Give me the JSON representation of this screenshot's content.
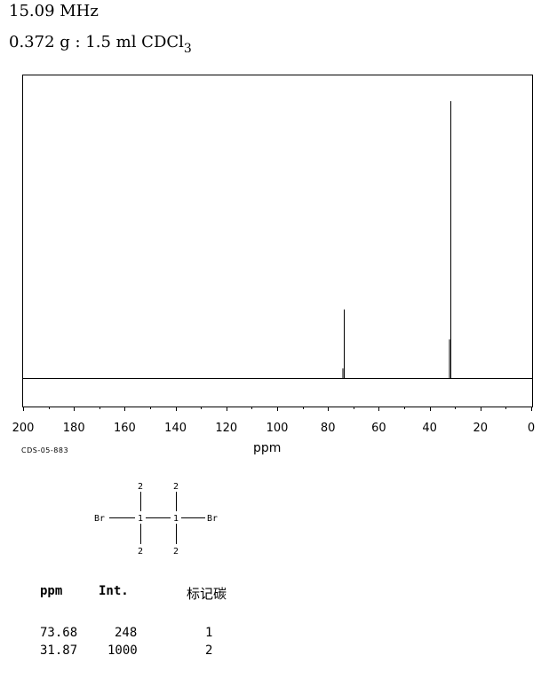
{
  "header": {
    "frequency": "15.09 MHz",
    "sample_main": "0.372 g : 1.5 ml CDCl",
    "sample_sub": "3"
  },
  "spectrum_code": "CDS-05-883",
  "chart_data": {
    "type": "line",
    "title": "",
    "xlabel": "ppm",
    "ylabel": "",
    "x_axis": {
      "min": 0,
      "max": 200,
      "reversed": true,
      "major_ticks": [
        200,
        180,
        160,
        140,
        120,
        100,
        80,
        60,
        40,
        20,
        0
      ],
      "tick_labels": [
        "200",
        "180",
        "160",
        "140",
        "120",
        "100",
        "80",
        "60",
        "40",
        "20",
        "0"
      ]
    },
    "y_axis": {
      "min": 0,
      "max": 1000
    },
    "grid": false,
    "series": [
      {
        "peaks": [
          {
            "ppm": 73.68,
            "intensity": 248
          },
          {
            "ppm": 31.87,
            "intensity": 1000
          }
        ]
      }
    ]
  },
  "molecule": {
    "left_atom": "Br",
    "right_atom": "Br",
    "c1_label": "1",
    "c2_label": "1",
    "c1_top": "2",
    "c1_bottom": "2",
    "c2_top": "2",
    "c2_bottom": "2"
  },
  "table": {
    "headers": [
      "ppm",
      "Int.",
      "标记碳"
    ],
    "rows": [
      [
        "73.68",
        "248",
        "1"
      ],
      [
        "31.87",
        "1000",
        "2"
      ]
    ]
  }
}
